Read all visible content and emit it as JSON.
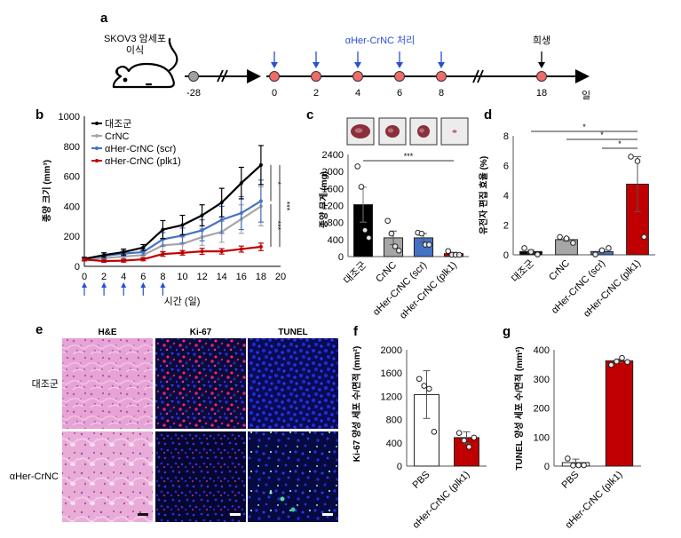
{
  "panel_a": {
    "label": "a",
    "mouse_caption_line1": "SKOV3 암세포",
    "mouse_caption_line2": "이식",
    "treatment_label": "αHer-CrNC 처리",
    "sacrifice_label": "희생",
    "unit_label": "일",
    "timeline_points": [
      {
        "day": "-28",
        "color": "#a0a0a0",
        "arrow": "none"
      },
      {
        "day": "0",
        "color": "#f26b6b",
        "arrow": "blue"
      },
      {
        "day": "2",
        "color": "#f26b6b",
        "arrow": "blue"
      },
      {
        "day": "4",
        "color": "#f26b6b",
        "arrow": "blue"
      },
      {
        "day": "6",
        "color": "#f26b6b",
        "arrow": "blue"
      },
      {
        "day": "8",
        "color": "#f26b6b",
        "arrow": "blue"
      },
      {
        "day": "18",
        "color": "#f26b6b",
        "arrow": "black"
      }
    ],
    "colors": {
      "treatment": "#2a4fd6",
      "sacrifice": "#000000"
    }
  },
  "chart_data": [
    {
      "id": "b",
      "panel_label": "b",
      "type": "line",
      "title": "",
      "xlabel": "시간 (일)",
      "ylabel": "종양 크기 (mm³)",
      "x": [
        0,
        2,
        4,
        6,
        8,
        10,
        12,
        14,
        16,
        18
      ],
      "xlim": [
        0,
        20
      ],
      "ylim": [
        0,
        1000
      ],
      "xticks": [
        "0",
        "2",
        "4",
        "6",
        "8",
        "10",
        "12",
        "14",
        "16",
        "18",
        "20"
      ],
      "yticks": [
        "0",
        "200",
        "400",
        "600",
        "800",
        "1000"
      ],
      "treatment_days": [
        0,
        2,
        4,
        6,
        8
      ],
      "legend_position": "top-left",
      "series": [
        {
          "name": "대조군",
          "color": "#000000",
          "values": [
            50,
            75,
            95,
            125,
            245,
            275,
            340,
            425,
            555,
            675
          ],
          "errors": [
            10,
            15,
            20,
            20,
            60,
            65,
            70,
            95,
            105,
            130
          ]
        },
        {
          "name": "CrNC",
          "color": "#a6a6a6",
          "values": [
            45,
            55,
            65,
            75,
            140,
            150,
            195,
            230,
            315,
            400
          ],
          "errors": [
            10,
            15,
            15,
            15,
            40,
            45,
            55,
            70,
            95,
            130
          ]
        },
        {
          "name": "αHer-CrNC (scr)",
          "color": "#4472c4",
          "values": [
            50,
            70,
            85,
            95,
            180,
            205,
            240,
            310,
            355,
            435
          ],
          "errors": [
            10,
            20,
            20,
            20,
            45,
            50,
            70,
            90,
            110,
            140
          ]
        },
        {
          "name": "αHer-CrNC (plk1)",
          "color": "#c00000",
          "values": [
            45,
            35,
            38,
            47,
            82,
            90,
            100,
            100,
            115,
            130
          ],
          "errors": [
            8,
            8,
            10,
            10,
            15,
            15,
            20,
            18,
            20,
            25
          ]
        }
      ],
      "significance": [
        {
          "groups": [
            "대조군",
            "αHer-CrNC (scr)"
          ],
          "label": "*"
        },
        {
          "groups": [
            "αHer-CrNC (scr)",
            "αHer-CrNC (plk1)"
          ],
          "label": "***"
        },
        {
          "groups": [
            "대조군",
            "αHer-CrNC (plk1)"
          ],
          "label": "***"
        }
      ]
    },
    {
      "id": "c",
      "panel_label": "c",
      "type": "bar",
      "title": "",
      "xlabel": "",
      "ylabel": "종양 무게 (mg)",
      "categories": [
        "대조군",
        "CrNC",
        "αHer-CrNC (scr)",
        "αHer-CrNC (plk1)"
      ],
      "values": [
        1220,
        440,
        440,
        70
      ],
      "errors": [
        410,
        160,
        100,
        30
      ],
      "points": [
        [
          2120,
          1640,
          620,
          440
        ],
        [
          840,
          540,
          240,
          140
        ],
        [
          560,
          540,
          280,
          280
        ],
        [
          130,
          40,
          40,
          40
        ]
      ],
      "bar_colors": [
        "#000000",
        "#a6a6a6",
        "#4472c4",
        "#c00000"
      ],
      "ylim": [
        0,
        2400
      ],
      "yticks": [
        "0",
        "400",
        "800",
        "1200",
        "1600",
        "2000",
        "2400"
      ],
      "significance": [
        {
          "from": 0,
          "to": 3,
          "label": "***"
        }
      ],
      "tumor_photos": 4
    },
    {
      "id": "d",
      "panel_label": "d",
      "type": "bar",
      "title": "",
      "xlabel": "",
      "ylabel": "유전자 편집 효율 (%)",
      "categories": [
        "대조군",
        "CrNC",
        "αHer-CrNC (scr)",
        "αHer-CrNC (plk1)"
      ],
      "values": [
        0.22,
        1.02,
        0.22,
        4.75
      ],
      "errors": [
        0.1,
        0.1,
        0.1,
        1.85
      ],
      "points": [
        [
          0.45,
          0.2,
          0.02
        ],
        [
          1.2,
          1.1,
          0.8
        ],
        [
          0.02,
          0.3,
          0.45
        ],
        [
          6.6,
          6.3,
          1.2
        ]
      ],
      "bar_colors": [
        "#000000",
        "#a6a6a6",
        "#4472c4",
        "#c00000"
      ],
      "ylim": [
        0,
        8
      ],
      "yticks": [
        "0",
        "2",
        "4",
        "6",
        "8"
      ],
      "significance": [
        {
          "from": 0,
          "to": 3,
          "label": "*"
        },
        {
          "from": 1,
          "to": 3,
          "label": "*"
        },
        {
          "from": 2,
          "to": 3,
          "label": "*"
        }
      ]
    },
    {
      "id": "f",
      "panel_label": "f",
      "type": "bar",
      "title": "",
      "xlabel": "",
      "ylabel": "Ki-67 양성 세포 수/면적 (mm²)",
      "categories": [
        "PBS",
        "αHer-CrNC (plk1)"
      ],
      "values": [
        1230,
        490
      ],
      "errors": [
        410,
        100
      ],
      "points": [
        [
          1500,
          1380,
          1330,
          590
        ],
        [
          570,
          440,
          330,
          490
        ]
      ],
      "bar_colors": [
        "#ffffff",
        "#c00000"
      ],
      "ylim": [
        0,
        2000
      ],
      "yticks": [
        "0",
        "400",
        "800",
        "1200",
        "1600",
        "2000"
      ]
    },
    {
      "id": "g",
      "panel_label": "g",
      "type": "bar",
      "title": "",
      "xlabel": "",
      "ylabel": "TUNEL 양성 세포 수/면적 (mm²)",
      "categories": [
        "PBS",
        "αHer-CrNC (plk1)"
      ],
      "values": [
        12,
        362
      ],
      "errors": [
        12,
        6
      ],
      "points": [
        [
          26,
          2,
          3,
          3
        ],
        [
          348,
          360,
          372,
          358
        ]
      ],
      "bar_colors": [
        "#ffffff",
        "#c00000"
      ],
      "ylim": [
        0,
        400
      ],
      "yticks": [
        "0",
        "100",
        "200",
        "300",
        "400"
      ]
    }
  ],
  "panel_e": {
    "label": "e",
    "columns": [
      "H&E",
      "Ki-67",
      "TUNEL"
    ],
    "rows": [
      "대조군",
      "αHer-CrNC"
    ]
  }
}
